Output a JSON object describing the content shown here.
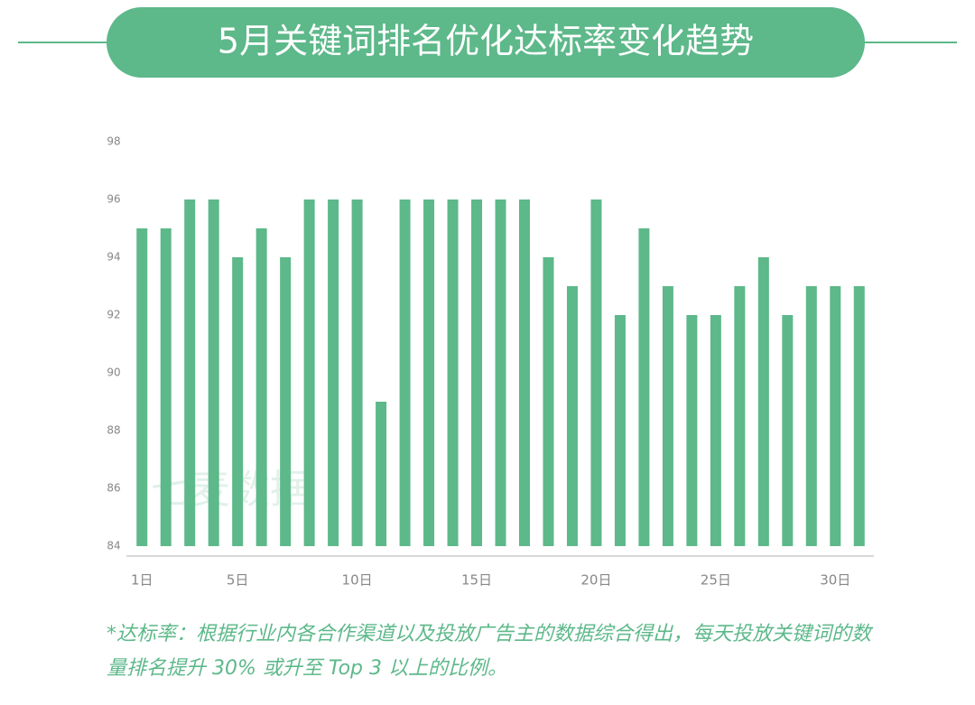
{
  "chart_data": {
    "type": "bar",
    "title": "5月关键词排名优化达标率变化趋势",
    "watermark": "七麦数据",
    "footnote": "*达标率：根据行业内各合作渠道以及投放广告主的数据综合得出，每天投放关键词的数量排名提升 30% 或升至 Top 3 以上的比例。",
    "categories": [
      "1日",
      null,
      null,
      null,
      "5日",
      null,
      null,
      null,
      null,
      "10日",
      null,
      null,
      null,
      null,
      "15日",
      null,
      null,
      null,
      null,
      "20日",
      null,
      null,
      null,
      null,
      "25日",
      null,
      null,
      null,
      null,
      "30日",
      null
    ],
    "values": [
      95,
      95,
      96,
      96,
      94,
      95,
      94,
      96,
      96,
      96,
      89,
      96,
      96,
      96,
      96,
      96,
      96,
      94,
      93,
      96,
      92,
      95,
      93,
      92,
      92,
      93,
      94,
      92,
      93,
      93,
      93
    ],
    "color": "#5db88a",
    "ylim": [
      84,
      98
    ],
    "yticks": [
      84,
      86,
      88,
      90,
      92,
      94,
      96,
      98
    ],
    "grid": false
  }
}
